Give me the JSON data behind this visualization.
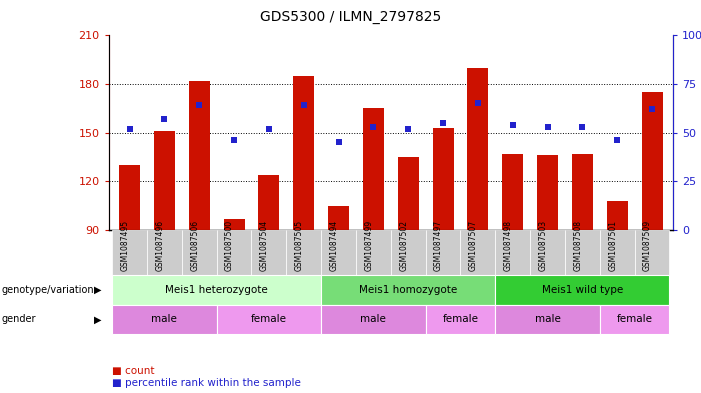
{
  "title": "GDS5300 / ILMN_2797825",
  "samples": [
    "GSM1087495",
    "GSM1087496",
    "GSM1087506",
    "GSM1087500",
    "GSM1087504",
    "GSM1087505",
    "GSM1087494",
    "GSM1087499",
    "GSM1087502",
    "GSM1087497",
    "GSM1087507",
    "GSM1087498",
    "GSM1087503",
    "GSM1087508",
    "GSM1087501",
    "GSM1087509"
  ],
  "counts": [
    130,
    151,
    182,
    97,
    124,
    185,
    105,
    165,
    135,
    153,
    190,
    137,
    136,
    137,
    108,
    175
  ],
  "percentiles": [
    52,
    57,
    64,
    46,
    52,
    64,
    45,
    53,
    52,
    55,
    65,
    54,
    53,
    53,
    46,
    62
  ],
  "ylim_left": [
    90,
    210
  ],
  "ylim_right": [
    0,
    100
  ],
  "yticks_left": [
    90,
    120,
    150,
    180,
    210
  ],
  "yticks_right": [
    0,
    25,
    50,
    75,
    100
  ],
  "bar_color": "#cc1100",
  "dot_color": "#2222cc",
  "genotype_groups": [
    {
      "label": "Meis1 heterozygote",
      "start": 0,
      "end": 5,
      "color": "#ccffcc"
    },
    {
      "label": "Meis1 homozygote",
      "start": 6,
      "end": 10,
      "color": "#77dd77"
    },
    {
      "label": "Meis1 wild type",
      "start": 11,
      "end": 15,
      "color": "#33cc33"
    }
  ],
  "gender_groups": [
    {
      "label": "male",
      "start": 0,
      "end": 2,
      "color": "#dd88dd"
    },
    {
      "label": "female",
      "start": 3,
      "end": 5,
      "color": "#ee99ee"
    },
    {
      "label": "male",
      "start": 6,
      "end": 8,
      "color": "#dd88dd"
    },
    {
      "label": "female",
      "start": 9,
      "end": 10,
      "color": "#ee99ee"
    },
    {
      "label": "male",
      "start": 11,
      "end": 13,
      "color": "#dd88dd"
    },
    {
      "label": "female",
      "start": 14,
      "end": 15,
      "color": "#ee99ee"
    }
  ],
  "tick_color_left": "#cc1100",
  "tick_color_right": "#2222cc",
  "legend_count_color": "#cc1100",
  "legend_percentile_color": "#2222cc",
  "sample_bg_color": "#cccccc"
}
